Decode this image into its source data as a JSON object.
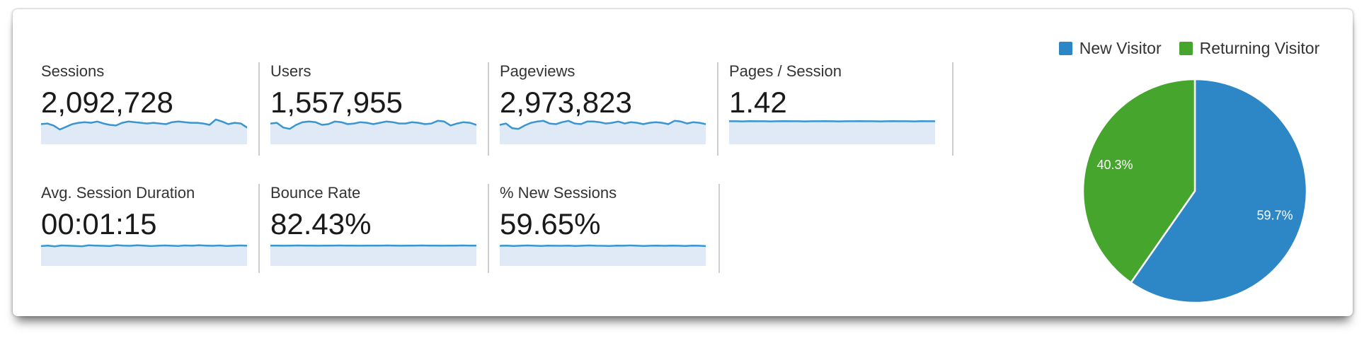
{
  "metrics": {
    "rows": [
      [
        {
          "label": "Sessions",
          "value": "2,092,728"
        },
        {
          "label": "Users",
          "value": "1,557,955"
        },
        {
          "label": "Pageviews",
          "value": "2,973,823"
        },
        {
          "label": "Pages / Session",
          "value": "1.42"
        }
      ],
      [
        {
          "label": "Avg. Session Duration",
          "value": "00:01:15"
        },
        {
          "label": "Bounce Rate",
          "value": "82.43%"
        },
        {
          "label": "% New Sessions",
          "value": "59.65%"
        }
      ]
    ]
  },
  "chart_data": [
    {
      "type": "pie",
      "series": [
        {
          "label": "New Visitor",
          "value": 59.7,
          "display": "59.7%",
          "color": "#2d86c5"
        },
        {
          "label": "Returning Visitor",
          "value": 40.3,
          "display": "40.3%",
          "color": "#46a52d"
        }
      ],
      "legend_position": "top",
      "start_angle_deg": 0,
      "direction": "clockwise",
      "slice_label_color": "#ffffff"
    },
    {
      "type": "line",
      "role": "sparklines",
      "line_color": "#3a95d0",
      "fill_color": "#dfeaf6",
      "series": [
        {
          "name": "Sessions",
          "values": [
            5.5,
            6,
            4.5,
            1.5,
            3.5,
            5.5,
            6.5,
            7,
            6.5,
            7.5,
            6,
            5,
            4.5,
            6.5,
            7.5,
            7,
            6.5,
            6,
            6.5,
            6,
            5.5,
            7,
            7.5,
            7,
            6.5,
            6.5,
            6,
            5,
            9,
            7.5,
            5.5,
            6.5,
            6,
            3
          ]
        },
        {
          "name": "Users",
          "values": [
            6,
            6.5,
            3,
            2,
            5,
            7,
            7.5,
            7,
            5,
            5.5,
            7.5,
            7,
            5.5,
            6,
            7,
            6.5,
            5.5,
            6.5,
            7.5,
            7,
            6,
            6,
            7,
            6.5,
            5.5,
            6,
            8,
            7.5,
            4.5,
            6,
            7,
            6.5,
            5
          ]
        },
        {
          "name": "Pageviews",
          "values": [
            5,
            6,
            2.5,
            2,
            4.5,
            6.5,
            7.5,
            8,
            6,
            5.5,
            7,
            8,
            6,
            5.5,
            7.5,
            7.5,
            7,
            6,
            6.5,
            7.5,
            6,
            7,
            6.5,
            5.5,
            6.5,
            7,
            6.5,
            5.5,
            8,
            7.5,
            6,
            7,
            6.5,
            5.5
          ]
        },
        {
          "name": "Pages / Session",
          "values": [
            7.7,
            7.7,
            7.6,
            7.8,
            7.7,
            7.7,
            7.6,
            7.7,
            7.8,
            7.7,
            7.7,
            7.6,
            7.7,
            7.7,
            7.8,
            7.7,
            7.6,
            7.7,
            7.7,
            7.8,
            7.7,
            7.7,
            7.6,
            7.7,
            7.8,
            7.7,
            7.7,
            7.6,
            7.8,
            7.7,
            7.7
          ]
        },
        {
          "name": "Avg. Session Duration",
          "values": [
            5.3,
            5.7,
            5.1,
            5.8,
            5.6,
            5.4,
            5.2,
            5.9,
            5.7,
            5.5,
            5.3,
            6.0,
            5.7,
            5.5,
            5.9,
            5.7,
            5.3,
            5.6,
            5.8,
            5.6,
            5.4,
            5.8,
            5.6,
            5.9,
            5.7,
            5.5,
            5.8,
            5.4,
            5.6,
            5.8,
            5.6
          ]
        },
        {
          "name": "Bounce Rate",
          "values": [
            5.7,
            5.7,
            5.6,
            5.7,
            5.8,
            5.7,
            5.7,
            5.6,
            5.7,
            5.7,
            5.8,
            5.7,
            5.7,
            5.6,
            5.7,
            5.7,
            5.7,
            5.8,
            5.7,
            5.6,
            5.7,
            5.7,
            5.8,
            5.7,
            5.7,
            5.6,
            5.7,
            5.7,
            5.8,
            5.7,
            5.7
          ]
        },
        {
          "name": "% New Sessions",
          "values": [
            5.5,
            5.7,
            5.4,
            5.6,
            5.8,
            5.6,
            5.4,
            5.7,
            5.6,
            5.5,
            5.7,
            5.4,
            5.6,
            5.8,
            5.6,
            5.5,
            5.4,
            5.7,
            5.6,
            5.8,
            5.6,
            5.4,
            5.6,
            5.7,
            5.5,
            5.7,
            5.6,
            5.4,
            5.7,
            5.6,
            5.3
          ]
        }
      ]
    }
  ],
  "colors": {
    "divider": "#cfcfcf",
    "metric_label": "#333333",
    "metric_value": "#1a1a1a",
    "legend_text": "#333333"
  }
}
